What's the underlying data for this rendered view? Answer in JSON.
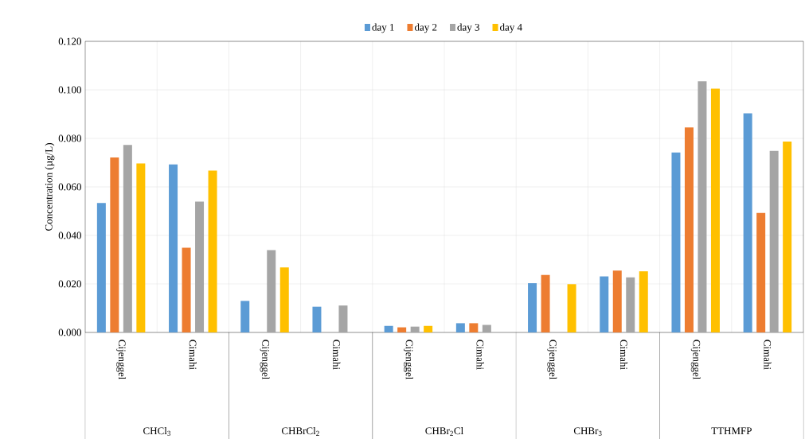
{
  "chart_data": {
    "type": "bar",
    "ylabel": "Concentration (µg/L)",
    "categories": [
      "Cijenggel",
      "Cimahi",
      "Cijenggel",
      "Cimahi",
      "Cijenggel",
      "Cimahi",
      "Cijenggel",
      "Cimahi",
      "Cijenggel",
      "Cimahi"
    ],
    "annotations": [
      "CHCl$_{3}$",
      "CHBrCl$_{2}$",
      "CHBr$_{2}$Cl",
      "CHBr$_{3}$",
      "TTHMFP"
    ],
    "series": [
      {
        "name": "day 1",
        "color": "#5b9bd5",
        "values": [
          0.0534,
          0.0693,
          0.013,
          0.0106,
          0.0027,
          0.0038,
          0.0203,
          0.0231,
          0.0742,
          0.0903
        ]
      },
      {
        "name": "day 2",
        "color": "#ed7d31",
        "values": [
          0.0721,
          0.0349,
          null,
          null,
          0.0021,
          0.0038,
          0.0237,
          0.0255,
          0.0845,
          0.0493
        ]
      },
      {
        "name": "day 3",
        "color": "#a5a5a5",
        "values": [
          0.0773,
          0.0539,
          0.0339,
          0.0111,
          0.0024,
          0.0031,
          null,
          0.0227,
          0.1035,
          0.0748
        ]
      },
      {
        "name": "day 4",
        "color": "#ffc000",
        "values": [
          0.0697,
          0.0667,
          0.0268,
          null,
          0.0027,
          null,
          0.0199,
          0.0252,
          0.1005,
          0.0787
        ]
      }
    ],
    "ylim": [
      0,
      0.12
    ],
    "yticks": [
      {
        "value": 0,
        "label": "0.000"
      },
      {
        "value": 0.02,
        "label": "0.020"
      },
      {
        "value": 0.04,
        "label": "0.040"
      },
      {
        "value": 0.06,
        "label": "0.060"
      },
      {
        "value": 0.08,
        "label": "0.080"
      },
      {
        "value": 0.1,
        "label": "0.100"
      },
      {
        "value": 0.12,
        "label": "0.120"
      }
    ],
    "grid": true,
    "legend": "top"
  }
}
